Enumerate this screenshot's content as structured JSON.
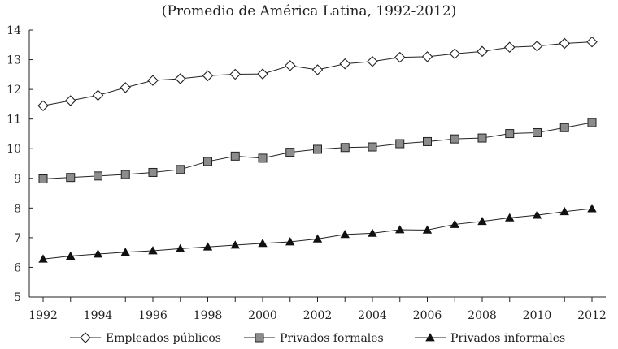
{
  "chart_data": {
    "type": "line",
    "title": "(Promedio de América Latina, 1992-2012)",
    "xlabel": "",
    "ylabel": "",
    "x": [
      1992,
      1993,
      1994,
      1995,
      1996,
      1997,
      1998,
      1999,
      2000,
      2001,
      2002,
      2003,
      2004,
      2005,
      2006,
      2007,
      2008,
      2009,
      2010,
      2011,
      2012
    ],
    "x_ticks": [
      1992,
      1994,
      1996,
      1998,
      2000,
      2002,
      2004,
      2006,
      2008,
      2010,
      2012
    ],
    "y_ticks": [
      5,
      6,
      7,
      8,
      9,
      10,
      11,
      12,
      13,
      14
    ],
    "ylim": [
      5,
      14
    ],
    "xlim": [
      1992,
      2012
    ],
    "grid": false,
    "legend_position": "bottom",
    "series": [
      {
        "name": "Empleados públicos",
        "marker": "diamond-open",
        "values": [
          11.45,
          11.62,
          11.8,
          12.06,
          12.3,
          12.36,
          12.46,
          12.51,
          12.52,
          12.8,
          12.66,
          12.86,
          12.94,
          13.08,
          13.1,
          13.2,
          13.28,
          13.42,
          13.46,
          13.55,
          13.6
        ]
      },
      {
        "name": "Privados formales",
        "marker": "square-filled",
        "values": [
          8.98,
          9.03,
          9.08,
          9.13,
          9.2,
          9.3,
          9.57,
          9.75,
          9.68,
          9.88,
          9.98,
          10.04,
          10.06,
          10.17,
          10.24,
          10.33,
          10.36,
          10.51,
          10.54,
          10.71,
          10.88
        ]
      },
      {
        "name": "Privados informales",
        "marker": "triangle-filled",
        "values": [
          6.28,
          6.38,
          6.45,
          6.51,
          6.56,
          6.63,
          6.69,
          6.75,
          6.81,
          6.86,
          6.96,
          7.11,
          7.15,
          7.27,
          7.26,
          7.45,
          7.55,
          7.67,
          7.76,
          7.88,
          7.98
        ]
      }
    ]
  }
}
